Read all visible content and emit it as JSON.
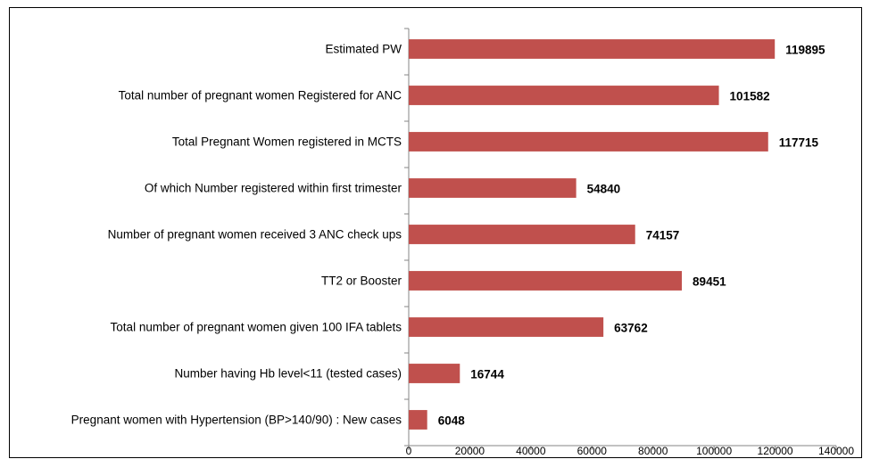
{
  "chart_data": {
    "type": "barh",
    "categories": [
      "Estimated PW",
      "Total number of pregnant women Registered for ANC",
      "Total Pregnant Women registered in MCTS",
      "Of which Number registered within first trimester",
      "Number of pregnant women received 3 ANC check ups",
      "TT2 or Booster",
      "Total number of pregnant women given 100 IFA tablets",
      "Number having Hb level<11 (tested cases)",
      "Pregnant women with Hypertension (BP>140/90) : New cases"
    ],
    "values": [
      119895,
      101582,
      117715,
      54840,
      74157,
      89451,
      63762,
      16744,
      6048
    ],
    "color": "#c0504d",
    "xlim": [
      0,
      140000
    ],
    "xticks": [
      0,
      20000,
      40000,
      60000,
      80000,
      100000,
      120000,
      140000
    ]
  }
}
